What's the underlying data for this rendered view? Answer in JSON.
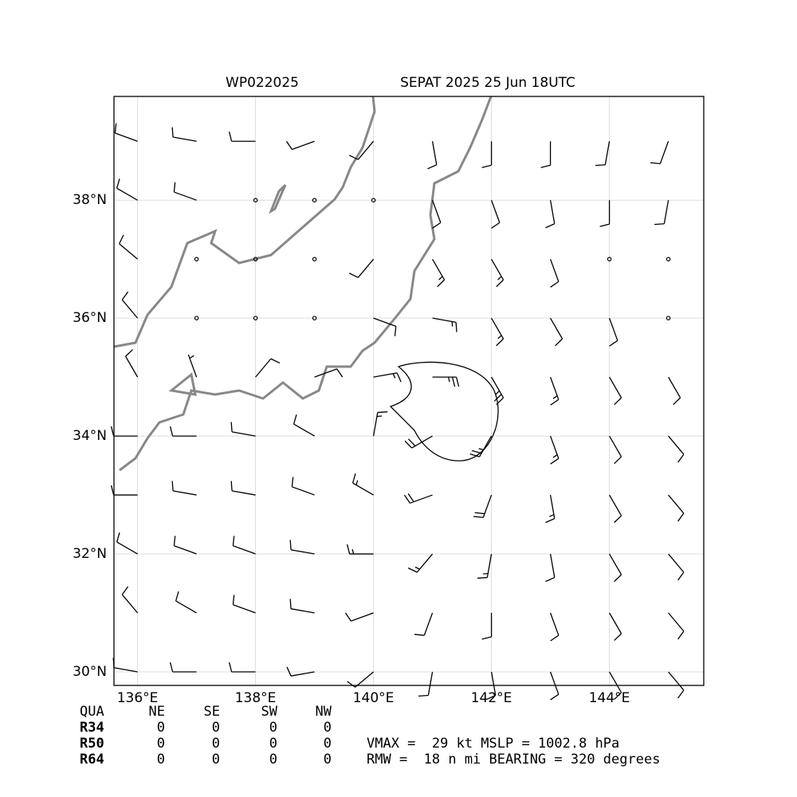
{
  "title_left": "WP022025",
  "title_right": "SEPAT 2025 25 Jun 18UTC",
  "map": {
    "xlim": [
      135.6,
      145.6
    ],
    "ylim": [
      29.77,
      39.76
    ],
    "xticks": [
      {
        "value": 136,
        "label": "136°E"
      },
      {
        "value": 138,
        "label": "138°E"
      },
      {
        "value": 140,
        "label": "140°E"
      },
      {
        "value": 142,
        "label": "142°E"
      },
      {
        "value": 144,
        "label": "144°E"
      }
    ],
    "yticks": [
      {
        "value": 30,
        "label": "30°N"
      },
      {
        "value": 32,
        "label": "32°N"
      },
      {
        "value": 34,
        "label": "34°N"
      },
      {
        "value": 36,
        "label": "36°N"
      },
      {
        "value": 38,
        "label": "38°N"
      }
    ],
    "barbs": {
      "lons": [
        136,
        137,
        138,
        139,
        140,
        141,
        142,
        143,
        144,
        145
      ],
      "lats": [
        39,
        38,
        37,
        36,
        35,
        34,
        33,
        32,
        31,
        30
      ],
      "direction": [
        [
          290,
          280,
          270,
          250,
          220,
          170,
          180,
          180,
          190,
          200
        ],
        [
          300,
          290,
          0,
          0,
          0,
          160,
          160,
          170,
          180,
          190
        ],
        [
          310,
          0,
          0,
          0,
          220,
          150,
          150,
          160,
          0,
          0
        ],
        [
          320,
          0,
          0,
          0,
          110,
          100,
          150,
          150,
          160,
          0
        ],
        [
          330,
          340,
          40,
          70,
          80,
          90,
          150,
          160,
          150,
          150
        ],
        [
          270,
          270,
          280,
          300,
          10,
          240,
          210,
          160,
          150,
          140
        ],
        [
          270,
          280,
          280,
          290,
          300,
          250,
          200,
          170,
          150,
          140
        ],
        [
          300,
          290,
          290,
          280,
          270,
          220,
          190,
          170,
          150,
          140
        ],
        [
          320,
          300,
          290,
          280,
          250,
          200,
          180,
          160,
          150,
          140
        ],
        [
          280,
          270,
          270,
          260,
          230,
          190,
          170,
          160,
          150,
          140
        ]
      ],
      "speed": [
        [
          10,
          10,
          10,
          10,
          10,
          10,
          10,
          10,
          10,
          10
        ],
        [
          10,
          10,
          0,
          0,
          0,
          10,
          10,
          10,
          10,
          10
        ],
        [
          10,
          0,
          0,
          0,
          10,
          15,
          15,
          10,
          0,
          0
        ],
        [
          10,
          0,
          0,
          0,
          10,
          15,
          15,
          10,
          10,
          0
        ],
        [
          10,
          5,
          10,
          10,
          15,
          25,
          25,
          15,
          10,
          10
        ],
        [
          10,
          10,
          10,
          10,
          15,
          20,
          25,
          15,
          10,
          10
        ],
        [
          10,
          10,
          10,
          10,
          15,
          20,
          20,
          15,
          10,
          10
        ],
        [
          10,
          10,
          10,
          10,
          15,
          15,
          15,
          10,
          10,
          10
        ],
        [
          10,
          10,
          10,
          10,
          10,
          10,
          10,
          10,
          10,
          10
        ],
        [
          10,
          10,
          10,
          10,
          10,
          10,
          10,
          10,
          10,
          10
        ]
      ]
    }
  },
  "table": {
    "header": [
      "QUA",
      "NE",
      "SE",
      "SW",
      "NW"
    ],
    "rows": [
      [
        "R34",
        0,
        0,
        0,
        0
      ],
      [
        "R50",
        0,
        0,
        0,
        0
      ],
      [
        "R64",
        0,
        0,
        0,
        0
      ]
    ]
  },
  "info": [
    "VMAX =  29 kt MSLP = 1002.8 hPa",
    "RMW =  18 n mi BEARING = 320 degrees"
  ]
}
